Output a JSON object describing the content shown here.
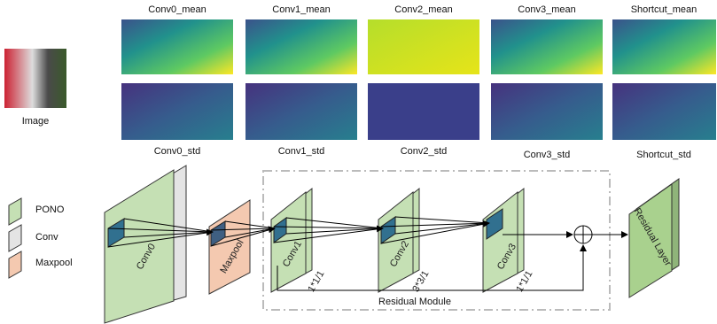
{
  "feature_maps": {
    "image_label": "Image",
    "mean_labels": [
      "Conv0_mean",
      "Conv1_mean",
      "Conv2_mean",
      "Conv3_mean",
      "Shortcut_mean"
    ],
    "std_labels": [
      "Conv0_std",
      "Conv1_std",
      "Conv2_std",
      "Conv3_std",
      "Shortcut_std"
    ]
  },
  "legend": [
    "PONO",
    "Conv",
    "Maxpool"
  ],
  "blocks": [
    {
      "label": "Conv0"
    },
    {
      "label": "Maxpool"
    },
    {
      "label": "Conv1",
      "kernel": "1*1/1"
    },
    {
      "label": "Conv2",
      "kernel": "3*3/1"
    },
    {
      "label": "Conv3",
      "kernel": "1*1/1"
    },
    {
      "label": "Residual Layer"
    }
  ],
  "module_label": "Residual Module"
}
